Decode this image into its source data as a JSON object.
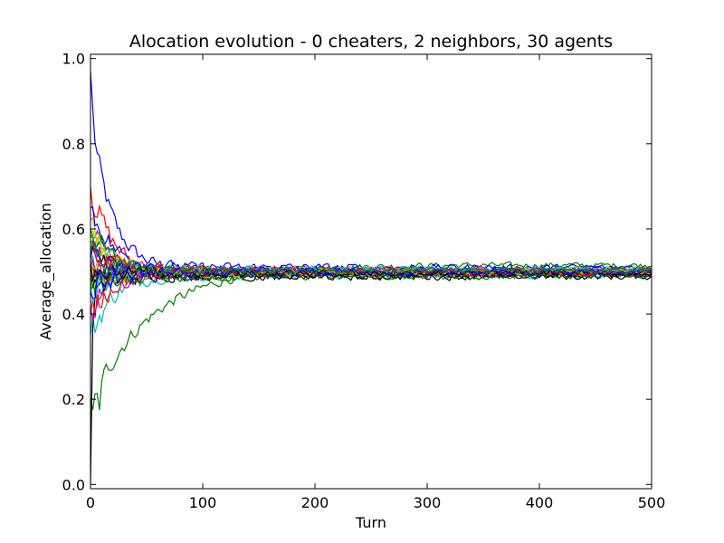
{
  "chart_data": {
    "type": "line",
    "title": "Alocation evolution - 0 cheaters, 2 neighbors, 30 agents",
    "xlabel": "Turn",
    "ylabel": "Average_allocation",
    "xlim": [
      0,
      500
    ],
    "ylim": [
      -0.01,
      1.01
    ],
    "xticks": [
      "0",
      "100",
      "200",
      "300",
      "400",
      "500"
    ],
    "yticks": [
      "0.0",
      "0.2",
      "0.4",
      "0.6",
      "0.8",
      "1.0"
    ],
    "grid": false,
    "legend": "none",
    "agent_count": 30,
    "series_note": "30 agent traces; values estimated (noisy convergence toward ~0.5)",
    "series": [
      {
        "color": "#0000ff",
        "start": 0.85,
        "settle": 0.505
      },
      {
        "color": "#008000",
        "start": 0.2,
        "settle": 0.515,
        "slow": true
      },
      {
        "color": "#ff0000",
        "start": 0.7,
        "settle": 0.5
      },
      {
        "color": "#00bfbf",
        "start": 0.35,
        "settle": 0.49
      },
      {
        "color": "#bf00bf",
        "start": 0.6,
        "settle": 0.5
      },
      {
        "color": "#bfbf00",
        "start": 0.62,
        "settle": 0.495
      },
      {
        "color": "#000000",
        "start": 0.5,
        "settle": 0.487
      },
      {
        "color": "#0000ff",
        "start": 0.65,
        "settle": 0.51
      },
      {
        "color": "#008000",
        "start": 0.45,
        "settle": 0.497
      },
      {
        "color": "#ff0000",
        "start": 0.4,
        "settle": 0.498
      },
      {
        "color": "#00bfbf",
        "start": 0.58,
        "settle": 0.503
      },
      {
        "color": "#bf00bf",
        "start": 0.55,
        "settle": 0.495
      },
      {
        "color": "#bfbf00",
        "start": 0.45,
        "settle": 0.505
      },
      {
        "color": "#000000",
        "start": 0.55,
        "settle": 0.494
      },
      {
        "color": "#0000ff",
        "start": 0.5,
        "settle": 0.497
      },
      {
        "color": "#008000",
        "start": 0.6,
        "settle": 0.502
      },
      {
        "color": "#ff0000",
        "start": 0.48,
        "settle": 0.503
      },
      {
        "color": "#00bfbf",
        "start": 0.52,
        "settle": 0.5
      },
      {
        "color": "#bf00bf",
        "start": 0.42,
        "settle": 0.493
      },
      {
        "color": "#bfbf00",
        "start": 0.58,
        "settle": 0.499
      },
      {
        "color": "#000000",
        "start": 0.46,
        "settle": 0.491
      },
      {
        "color": "#0000ff",
        "start": 0.53,
        "settle": 0.5
      },
      {
        "color": "#008000",
        "start": 0.49,
        "settle": 0.488
      },
      {
        "color": "#ff0000",
        "start": 0.57,
        "settle": 0.497
      },
      {
        "color": "#00bfbf",
        "start": 0.47,
        "settle": 0.504
      },
      {
        "color": "#bf00bf",
        "start": 0.51,
        "settle": 0.502
      },
      {
        "color": "#bfbf00",
        "start": 0.49,
        "settle": 0.498
      },
      {
        "color": "#000000",
        "start": 0.52,
        "settle": 0.496
      },
      {
        "color": "#0000ff",
        "start": 0.45,
        "settle": 0.499
      },
      {
        "color": "#008000",
        "start": 0.54,
        "settle": 0.501
      }
    ]
  }
}
